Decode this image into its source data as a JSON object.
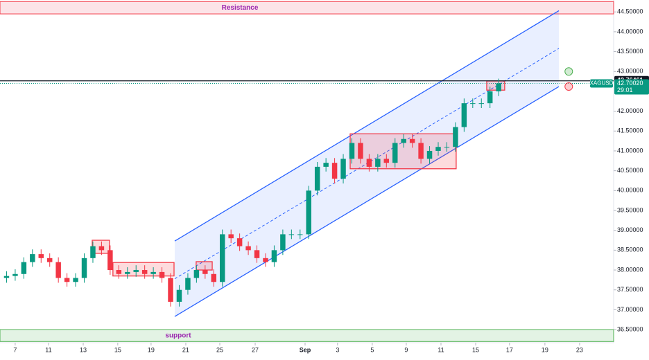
{
  "chart_data": {
    "type": "candlestick",
    "symbol": "XAGUSD",
    "countdown": "29:01",
    "x": [
      -0.5,
      0,
      0.5,
      1,
      1.5,
      2,
      2.5,
      3,
      3.5,
      4,
      4.5,
      5,
      5.5,
      6,
      6.5,
      7,
      7.5,
      8,
      8.5,
      9,
      9.5,
      10,
      10.5,
      11,
      11.5,
      12,
      12.5,
      13,
      13.5,
      14,
      14.5,
      15,
      15.5,
      16,
      16.5,
      17,
      17.5,
      18,
      18.5,
      19,
      19.5,
      20,
      20.5,
      21,
      21.5,
      22,
      22.5,
      23,
      23.5,
      24,
      24.5,
      25,
      25.5,
      26,
      26.5,
      27,
      27.5,
      28
    ],
    "open": [
      37.8,
      37.85,
      37.9,
      38.2,
      38.4,
      38.3,
      38.2,
      37.8,
      37.7,
      37.8,
      38.3,
      38.6,
      38.5,
      38.0,
      37.9,
      37.95,
      38.0,
      37.9,
      37.95,
      37.8,
      37.2,
      37.5,
      37.8,
      38.0,
      37.9,
      37.7,
      38.9,
      38.8,
      38.6,
      38.5,
      38.3,
      38.2,
      38.5,
      38.9,
      38.9,
      38.9,
      40.0,
      40.6,
      40.7,
      40.3,
      40.8,
      41.2,
      40.8,
      40.6,
      40.8,
      40.7,
      41.2,
      41.3,
      41.2,
      40.8,
      41.0,
      41.1,
      41.1,
      41.6,
      42.2,
      42.2,
      42.2,
      42.5
    ],
    "high": [
      37.97,
      38.02,
      38.32,
      38.52,
      38.52,
      38.42,
      38.32,
      37.92,
      37.92,
      38.42,
      38.72,
      38.72,
      38.62,
      38.12,
      38.07,
      38.12,
      38.12,
      38.07,
      38.07,
      37.92,
      37.62,
      37.92,
      38.12,
      38.12,
      38.02,
      39.02,
      39.02,
      38.92,
      38.72,
      38.62,
      38.42,
      38.62,
      39.02,
      39.02,
      39.02,
      40.12,
      40.72,
      40.82,
      40.82,
      40.92,
      41.32,
      41.32,
      40.92,
      40.92,
      40.92,
      41.32,
      41.42,
      41.42,
      41.32,
      41.12,
      41.22,
      41.22,
      41.72,
      42.32,
      42.32,
      42.32,
      42.62,
      42.82
    ],
    "low": [
      37.68,
      37.73,
      37.78,
      38.08,
      38.18,
      38.08,
      37.68,
      37.58,
      37.58,
      37.68,
      38.18,
      38.38,
      37.88,
      37.78,
      37.78,
      37.83,
      37.78,
      37.78,
      37.68,
      37.08,
      37.08,
      37.38,
      37.68,
      37.78,
      37.58,
      37.58,
      38.68,
      38.48,
      38.38,
      38.18,
      38.08,
      38.08,
      38.38,
      38.78,
      38.78,
      38.78,
      39.88,
      40.48,
      40.18,
      40.18,
      40.68,
      40.68,
      40.48,
      40.48,
      40.58,
      40.58,
      41.08,
      41.08,
      40.68,
      40.68,
      40.88,
      40.98,
      40.98,
      41.48,
      42.08,
      42.08,
      42.08,
      42.38
    ],
    "close": [
      37.85,
      37.9,
      38.2,
      38.4,
      38.3,
      38.2,
      37.8,
      37.7,
      37.8,
      38.3,
      38.6,
      38.5,
      38.0,
      37.9,
      37.95,
      38.0,
      37.9,
      37.95,
      37.8,
      37.2,
      37.5,
      37.8,
      38.0,
      37.9,
      37.7,
      38.9,
      38.8,
      38.6,
      38.5,
      38.3,
      38.2,
      38.5,
      38.9,
      38.9,
      38.9,
      40.0,
      40.6,
      40.7,
      40.3,
      40.8,
      41.2,
      40.8,
      40.6,
      40.8,
      40.7,
      41.2,
      41.3,
      41.2,
      40.8,
      41.0,
      41.1,
      41.1,
      41.6,
      42.2,
      42.2,
      42.2,
      42.5,
      42.7
    ],
    "up_color": "#089981",
    "down_color": "#f23645",
    "xlim": [
      -0.88,
      34.66
    ],
    "xticks": [
      {
        "value": 0,
        "label": "7"
      },
      {
        "value": 1.93,
        "label": "11"
      },
      {
        "value": 3.94,
        "label": "13"
      },
      {
        "value": 5.94,
        "label": "15"
      },
      {
        "value": 7.87,
        "label": "19"
      },
      {
        "value": 9.88,
        "label": "21"
      },
      {
        "value": 11.85,
        "label": "25"
      },
      {
        "value": 13.9,
        "label": "27"
      },
      {
        "value": 16.79,
        "label": "Sep"
      },
      {
        "value": 18.67,
        "label": "3"
      },
      {
        "value": 20.68,
        "label": "5"
      },
      {
        "value": 22.65,
        "label": "9"
      },
      {
        "value": 24.66,
        "label": "11"
      },
      {
        "value": 26.67,
        "label": "15"
      },
      {
        "value": 28.63,
        "label": "17"
      },
      {
        "value": 30.68,
        "label": "19"
      },
      {
        "value": 32.69,
        "label": "23"
      }
    ],
    "ylim": [
      36.17,
      44.8
    ],
    "yticks": [
      {
        "value": 36.5,
        "label": "36.50000"
      },
      {
        "value": 37,
        "label": "37.00000"
      },
      {
        "value": 37.5,
        "label": "37.50000"
      },
      {
        "value": 38,
        "label": "38.00000"
      },
      {
        "value": 38.5,
        "label": "38.50000"
      },
      {
        "value": 39,
        "label": "39.00000"
      },
      {
        "value": 39.5,
        "label": "39.50000"
      },
      {
        "value": 40,
        "label": "40.00000"
      },
      {
        "value": 40.5,
        "label": "40.50000"
      },
      {
        "value": 41,
        "label": "41.00000"
      },
      {
        "value": 41.5,
        "label": "41.50000"
      },
      {
        "value": 42,
        "label": "42.00000"
      },
      {
        "value": 43,
        "label": "43.00000"
      },
      {
        "value": 43.5,
        "label": "43.50000"
      },
      {
        "value": 44,
        "label": "44.00000"
      },
      {
        "value": 44.5,
        "label": "44.50000"
      }
    ],
    "resistance": {
      "label": "Resistance",
      "range": [
        44.45,
        44.76
      ]
    },
    "support": {
      "label": "support",
      "range": [
        36.2,
        36.5
      ]
    },
    "channel": {
      "x": [
        9.24,
        31.49
      ],
      "upper": [
        38.73,
        44.53
      ],
      "middle": [
        37.78,
        43.58
      ],
      "lower": [
        36.83,
        42.62
      ],
      "color": "#2962ff"
    },
    "boxes": [
      {
        "x": [
          4.46,
          5.46
        ],
        "y": [
          38.42,
          38.75
        ]
      },
      {
        "x": [
          5.66,
          9.2
        ],
        "y": [
          37.85,
          38.19
        ]
      },
      {
        "x": [
          10.48,
          11.41
        ],
        "y": [
          38.0,
          38.21
        ]
      },
      {
        "x": [
          19.4,
          25.54
        ],
        "y": [
          40.55,
          41.43
        ]
      },
      {
        "x": [
          27.31,
          28.35
        ],
        "y": [
          42.53,
          42.76
        ]
      }
    ],
    "crosshair_price": {
      "value": 42.76461,
      "label": "42.76461"
    },
    "last_price": {
      "value": 42.7002,
      "label": "42.70020"
    },
    "signals": [
      {
        "x": 32.06,
        "y": 43.0,
        "color": "#4caf50"
      },
      {
        "x": 32.06,
        "y": 42.62,
        "color": "#f23645"
      }
    ]
  }
}
